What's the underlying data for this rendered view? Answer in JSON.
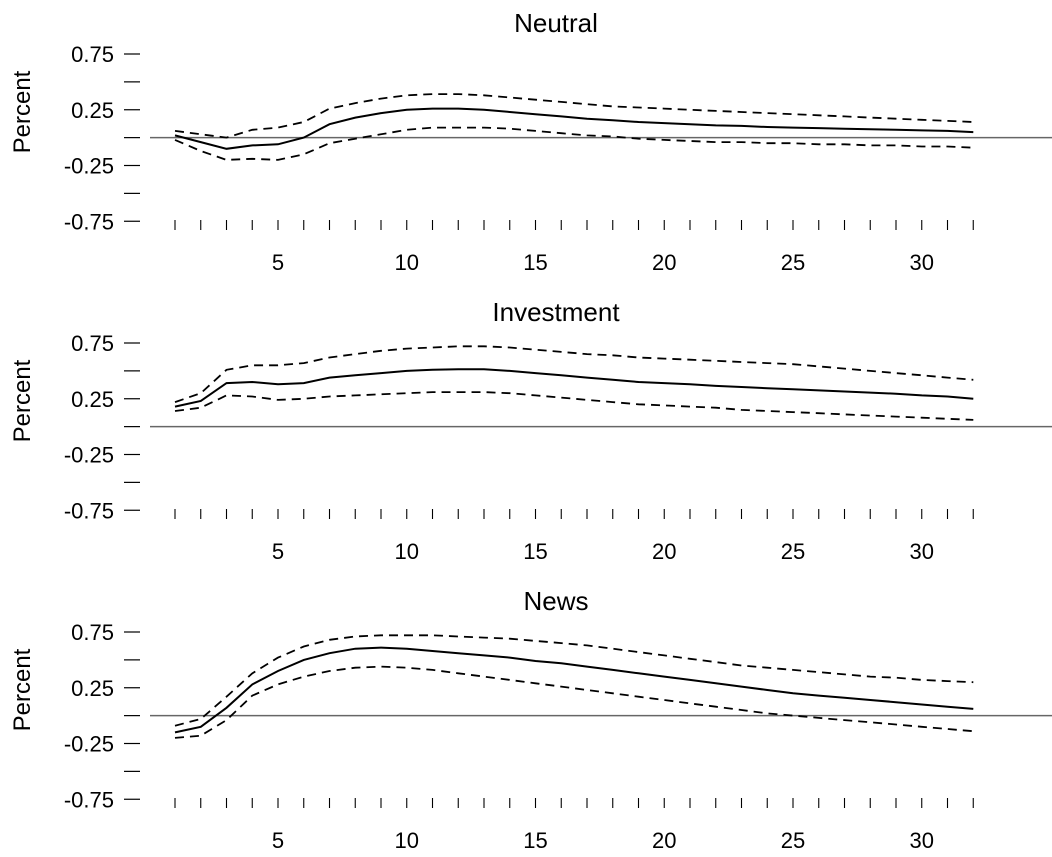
{
  "chart_data": [
    {
      "type": "line",
      "title": "Neutral",
      "ylabel": "Percent",
      "xlabel": "",
      "ylim": [
        -0.75,
        0.75
      ],
      "xlim": [
        1,
        32
      ],
      "yticks": [
        {
          "value": 0.75,
          "label": "0.75"
        },
        {
          "value": 0.25,
          "label": "0.25"
        },
        {
          "value": -0.25,
          "label": "-0.25"
        },
        {
          "value": -0.75,
          "label": "-0.75"
        }
      ],
      "yminor": [
        0.5,
        0.0,
        -0.5
      ],
      "xticks": [
        {
          "value": 5,
          "label": "5"
        },
        {
          "value": 10,
          "label": "10"
        },
        {
          "value": 15,
          "label": "15"
        },
        {
          "value": 20,
          "label": "20"
        },
        {
          "value": 25,
          "label": "25"
        },
        {
          "value": 30,
          "label": "30"
        }
      ],
      "zero_line": 0,
      "x": [
        1,
        2,
        3,
        4,
        5,
        6,
        7,
        8,
        9,
        10,
        11,
        12,
        13,
        14,
        15,
        16,
        17,
        18,
        19,
        20,
        21,
        22,
        23,
        24,
        25,
        26,
        27,
        28,
        29,
        30,
        31,
        32
      ],
      "series": [
        {
          "style": "solid",
          "values": [
            0.02,
            -0.04,
            -0.1,
            -0.07,
            -0.06,
            0.0,
            0.12,
            0.18,
            0.22,
            0.25,
            0.26,
            0.26,
            0.25,
            0.23,
            0.21,
            0.19,
            0.17,
            0.155,
            0.14,
            0.13,
            0.12,
            0.11,
            0.105,
            0.095,
            0.09,
            0.085,
            0.08,
            0.075,
            0.07,
            0.065,
            0.06,
            0.05
          ]
        },
        {
          "style": "dashed",
          "values": [
            0.06,
            0.03,
            0.0,
            0.07,
            0.09,
            0.14,
            0.26,
            0.31,
            0.35,
            0.38,
            0.39,
            0.39,
            0.38,
            0.36,
            0.34,
            0.32,
            0.3,
            0.28,
            0.27,
            0.26,
            0.25,
            0.24,
            0.23,
            0.22,
            0.21,
            0.2,
            0.19,
            0.18,
            0.17,
            0.16,
            0.15,
            0.14
          ]
        },
        {
          "style": "dashed",
          "values": [
            -0.02,
            -0.12,
            -0.2,
            -0.19,
            -0.2,
            -0.15,
            -0.05,
            -0.01,
            0.03,
            0.07,
            0.09,
            0.09,
            0.09,
            0.08,
            0.06,
            0.04,
            0.02,
            0.01,
            -0.01,
            -0.02,
            -0.03,
            -0.04,
            -0.04,
            -0.05,
            -0.05,
            -0.06,
            -0.06,
            -0.07,
            -0.07,
            -0.08,
            -0.08,
            -0.09
          ]
        }
      ]
    },
    {
      "type": "line",
      "title": "Investment",
      "ylabel": "Percent",
      "xlabel": "",
      "ylim": [
        -0.75,
        0.75
      ],
      "xlim": [
        1,
        32
      ],
      "yticks": [
        {
          "value": 0.75,
          "label": "0.75"
        },
        {
          "value": 0.25,
          "label": "0.25"
        },
        {
          "value": -0.25,
          "label": "-0.25"
        },
        {
          "value": -0.75,
          "label": "-0.75"
        }
      ],
      "yminor": [
        0.5,
        0.0,
        -0.5
      ],
      "xticks": [
        {
          "value": 5,
          "label": "5"
        },
        {
          "value": 10,
          "label": "10"
        },
        {
          "value": 15,
          "label": "15"
        },
        {
          "value": 20,
          "label": "20"
        },
        {
          "value": 25,
          "label": "25"
        },
        {
          "value": 30,
          "label": "30"
        }
      ],
      "zero_line": 0,
      "x": [
        1,
        2,
        3,
        4,
        5,
        6,
        7,
        8,
        9,
        10,
        11,
        12,
        13,
        14,
        15,
        16,
        17,
        18,
        19,
        20,
        21,
        22,
        23,
        24,
        25,
        26,
        27,
        28,
        29,
        30,
        31,
        32
      ],
      "series": [
        {
          "style": "solid",
          "values": [
            0.18,
            0.23,
            0.39,
            0.4,
            0.38,
            0.39,
            0.44,
            0.46,
            0.48,
            0.5,
            0.51,
            0.515,
            0.515,
            0.5,
            0.48,
            0.46,
            0.44,
            0.42,
            0.4,
            0.39,
            0.38,
            0.365,
            0.355,
            0.345,
            0.335,
            0.325,
            0.315,
            0.305,
            0.295,
            0.28,
            0.27,
            0.25
          ]
        },
        {
          "style": "dashed",
          "values": [
            0.22,
            0.3,
            0.51,
            0.55,
            0.55,
            0.57,
            0.62,
            0.65,
            0.68,
            0.7,
            0.71,
            0.72,
            0.72,
            0.71,
            0.69,
            0.67,
            0.65,
            0.64,
            0.62,
            0.61,
            0.6,
            0.59,
            0.58,
            0.57,
            0.56,
            0.54,
            0.52,
            0.5,
            0.48,
            0.46,
            0.44,
            0.42
          ]
        },
        {
          "style": "dashed",
          "values": [
            0.14,
            0.17,
            0.28,
            0.27,
            0.24,
            0.25,
            0.27,
            0.28,
            0.29,
            0.3,
            0.31,
            0.31,
            0.31,
            0.3,
            0.28,
            0.26,
            0.24,
            0.22,
            0.2,
            0.19,
            0.18,
            0.17,
            0.15,
            0.14,
            0.13,
            0.12,
            0.11,
            0.1,
            0.09,
            0.08,
            0.07,
            0.06
          ]
        }
      ]
    },
    {
      "type": "line",
      "title": "News",
      "ylabel": "Percent",
      "xlabel": "",
      "ylim": [
        -0.75,
        0.75
      ],
      "xlim": [
        1,
        32
      ],
      "yticks": [
        {
          "value": 0.75,
          "label": "0.75"
        },
        {
          "value": 0.25,
          "label": "0.25"
        },
        {
          "value": -0.25,
          "label": "-0.25"
        },
        {
          "value": -0.75,
          "label": "-0.75"
        }
      ],
      "yminor": [
        0.5,
        0.0,
        -0.5
      ],
      "xticks": [
        {
          "value": 5,
          "label": "5"
        },
        {
          "value": 10,
          "label": "10"
        },
        {
          "value": 15,
          "label": "15"
        },
        {
          "value": 20,
          "label": "20"
        },
        {
          "value": 25,
          "label": "25"
        },
        {
          "value": 30,
          "label": "30"
        }
      ],
      "zero_line": 0,
      "x": [
        1,
        2,
        3,
        4,
        5,
        6,
        7,
        8,
        9,
        10,
        11,
        12,
        13,
        14,
        15,
        16,
        17,
        18,
        19,
        20,
        21,
        22,
        23,
        24,
        25,
        26,
        27,
        28,
        29,
        30,
        31,
        32
      ],
      "series": [
        {
          "style": "solid",
          "values": [
            -0.15,
            -0.1,
            0.07,
            0.28,
            0.4,
            0.5,
            0.56,
            0.6,
            0.61,
            0.6,
            0.58,
            0.56,
            0.54,
            0.52,
            0.49,
            0.47,
            0.44,
            0.41,
            0.38,
            0.35,
            0.32,
            0.29,
            0.26,
            0.23,
            0.2,
            0.18,
            0.16,
            0.14,
            0.12,
            0.1,
            0.08,
            0.06
          ]
        },
        {
          "style": "dashed",
          "values": [
            -0.09,
            -0.03,
            0.17,
            0.38,
            0.52,
            0.62,
            0.68,
            0.71,
            0.72,
            0.72,
            0.72,
            0.71,
            0.7,
            0.69,
            0.67,
            0.65,
            0.63,
            0.6,
            0.57,
            0.54,
            0.51,
            0.48,
            0.45,
            0.43,
            0.41,
            0.39,
            0.37,
            0.35,
            0.34,
            0.32,
            0.31,
            0.3
          ]
        },
        {
          "style": "dashed",
          "values": [
            -0.2,
            -0.18,
            -0.04,
            0.18,
            0.28,
            0.35,
            0.4,
            0.43,
            0.44,
            0.43,
            0.41,
            0.38,
            0.35,
            0.32,
            0.29,
            0.26,
            0.23,
            0.2,
            0.17,
            0.14,
            0.11,
            0.08,
            0.05,
            0.02,
            0.0,
            -0.02,
            -0.04,
            -0.06,
            -0.08,
            -0.1,
            -0.12,
            -0.14
          ]
        }
      ]
    }
  ]
}
